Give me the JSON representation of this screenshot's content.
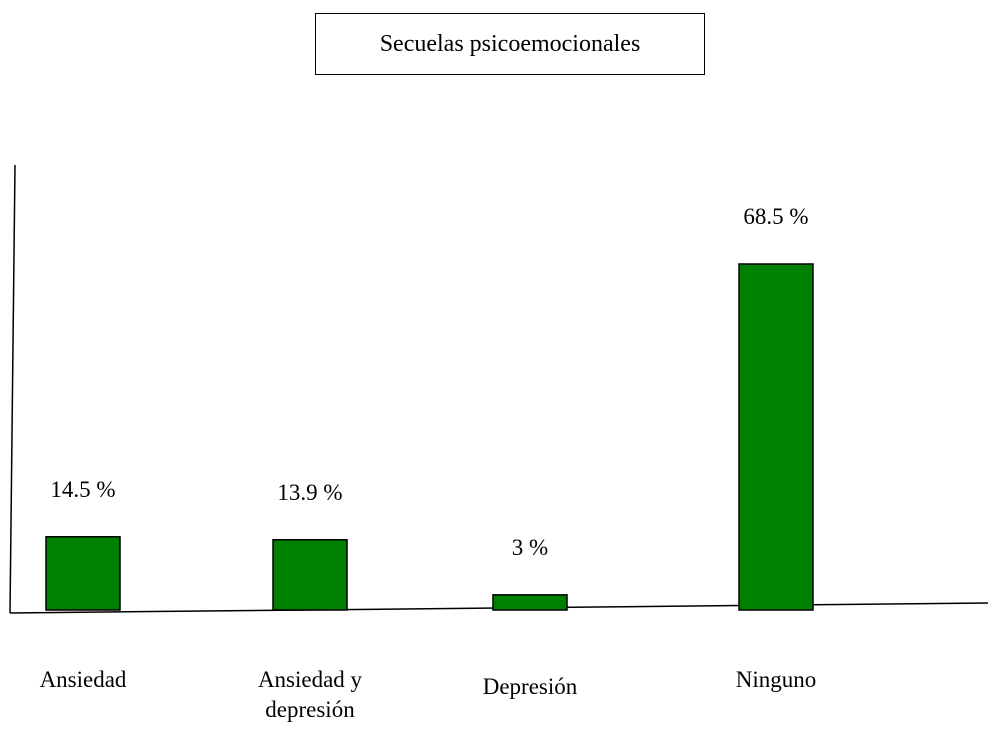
{
  "chart_data": {
    "type": "bar",
    "title": "Secuelas psicoemocionales",
    "categories": [
      "Ansiedad",
      "Ansiedad y depresión",
      "Depresión",
      "Ninguno"
    ],
    "values": [
      14.5,
      13.9,
      3,
      68.5
    ],
    "value_labels": [
      "14.5 %",
      "13.9 %",
      "3 %",
      "68.5 %"
    ],
    "color": "#008000"
  }
}
